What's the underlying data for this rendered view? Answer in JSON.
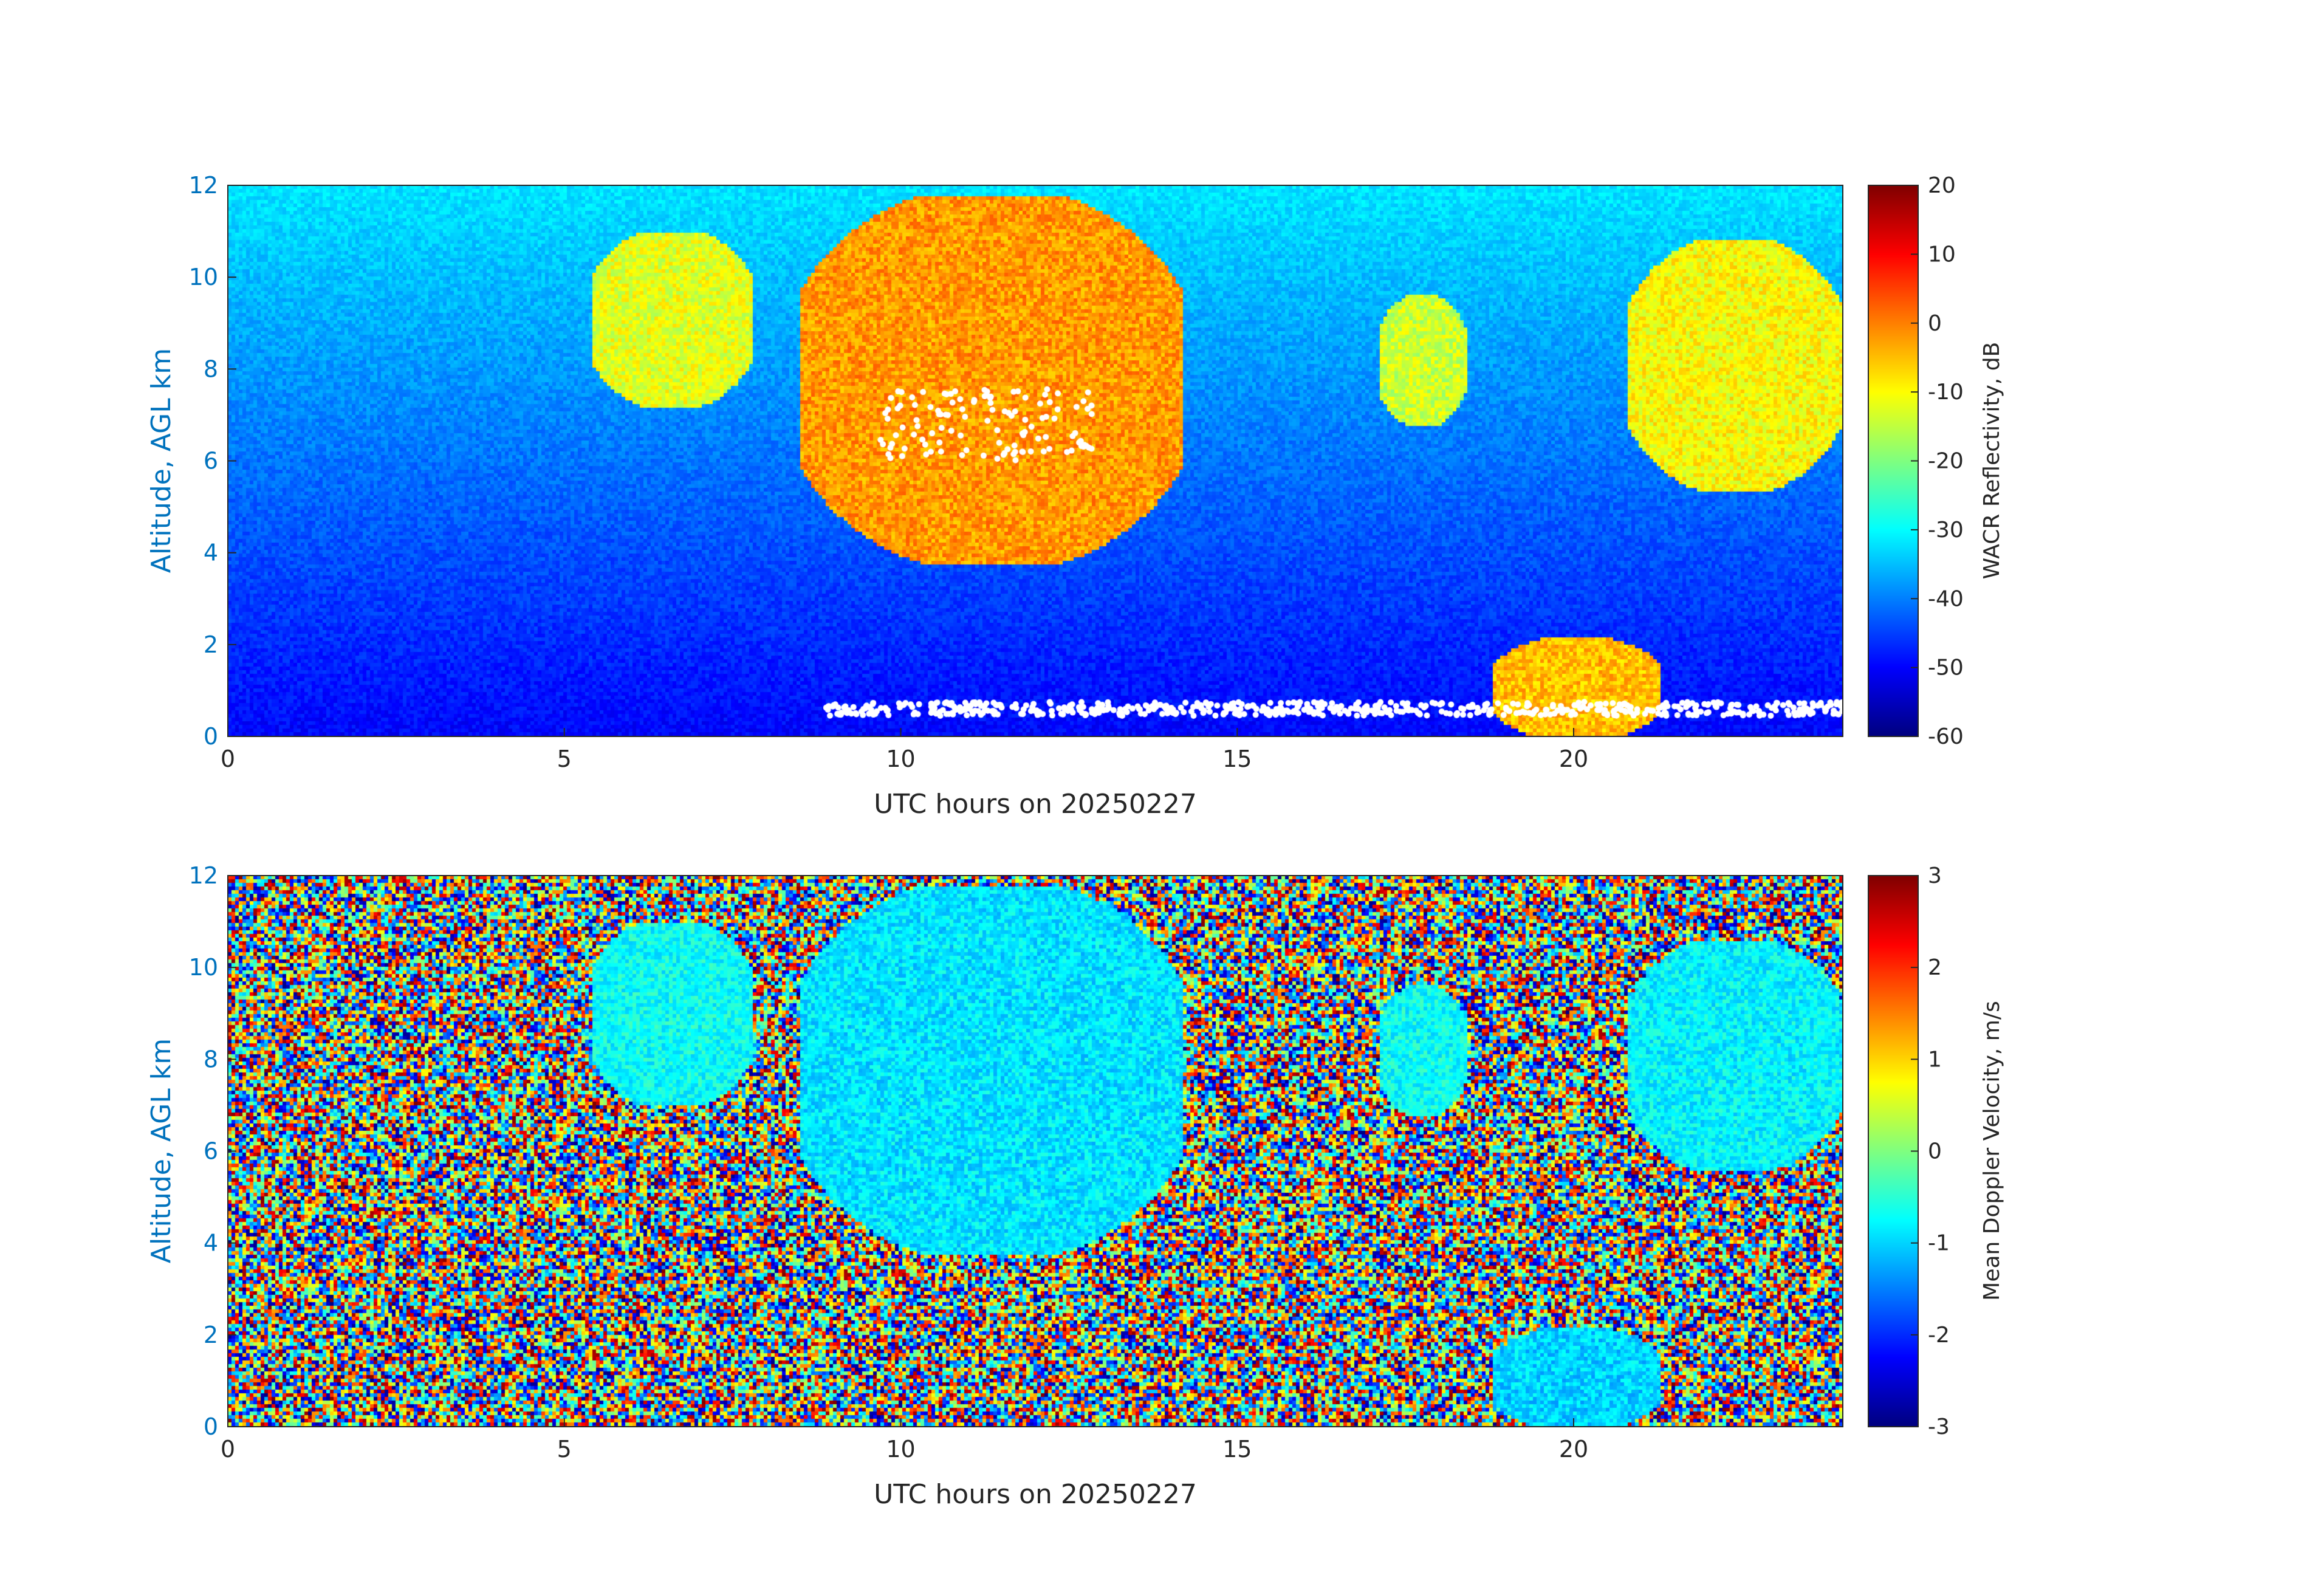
{
  "chart_data": [
    {
      "type": "heatmap",
      "xlabel": "UTC hours on 20250227",
      "ylabel": "Altitude, AGL km",
      "colorbar_label": "WACR Reflectivity, dB",
      "xlim": [
        0,
        24
      ],
      "ylim": [
        0,
        12
      ],
      "clim": [
        -60,
        20
      ],
      "x_ticks": [
        "0",
        "5",
        "10",
        "15",
        "20"
      ],
      "x_tick_values": [
        0,
        5,
        10,
        15,
        20
      ],
      "y_ticks": [
        "0",
        "2",
        "4",
        "6",
        "8",
        "10",
        "12"
      ],
      "y_tick_values": [
        0,
        2,
        4,
        6,
        8,
        10,
        12
      ],
      "colorbar_ticks": [
        "20",
        "10",
        "0",
        "-10",
        "-20",
        "-30",
        "-40",
        "-50",
        "-60"
      ],
      "colorbar_tick_values": [
        20,
        10,
        0,
        -10,
        -20,
        -30,
        -40,
        -50,
        -60
      ],
      "colormap": "jet",
      "grid": false,
      "cloud_features": [
        {
          "x_range": [
            5.4,
            7.8
          ],
          "y_range": [
            7.2,
            11.0
          ],
          "value_dB": -12
        },
        {
          "x_range": [
            8.5,
            14.2
          ],
          "y_range": [
            3.8,
            11.8
          ],
          "value_dB": -2
        },
        {
          "x_range": [
            17.1,
            18.4
          ],
          "y_range": [
            6.8,
            9.6
          ],
          "value_dB": -14
        },
        {
          "x_range": [
            20.8,
            24.0
          ],
          "y_range": [
            5.4,
            10.8
          ],
          "value_dB": -10
        },
        {
          "x_range": [
            18.8,
            21.3
          ],
          "y_range": [
            0.0,
            2.2
          ],
          "value_dB": -5
        }
      ],
      "overlay_markers": "white cloud-base points"
    },
    {
      "type": "heatmap",
      "xlabel": "UTC hours on 20250227",
      "ylabel": "Altitude, AGL km",
      "colorbar_label": "Mean Doppler Velocity, m/s",
      "xlim": [
        0,
        24
      ],
      "ylim": [
        0,
        12
      ],
      "clim": [
        -3,
        3
      ],
      "x_ticks": [
        "0",
        "5",
        "10",
        "15",
        "20"
      ],
      "x_tick_values": [
        0,
        5,
        10,
        15,
        20
      ],
      "y_ticks": [
        "0",
        "2",
        "4",
        "6",
        "8",
        "10",
        "12"
      ],
      "y_tick_values": [
        0,
        2,
        4,
        6,
        8,
        10,
        12
      ],
      "colorbar_ticks": [
        "3",
        "2",
        "1",
        "0",
        "-1",
        "-2",
        "-3"
      ],
      "colorbar_tick_values": [
        3,
        2,
        1,
        0,
        -1,
        -2,
        -3
      ],
      "colormap": "jet",
      "grid": false,
      "cloud_features": [
        {
          "x_range": [
            5.4,
            7.8
          ],
          "y_range": [
            7.0,
            11.0
          ],
          "value_ms": -0.7
        },
        {
          "x_range": [
            8.5,
            14.2
          ],
          "y_range": [
            3.8,
            11.8
          ],
          "value_ms": -0.9
        },
        {
          "x_range": [
            17.1,
            18.4
          ],
          "y_range": [
            6.8,
            9.6
          ],
          "value_ms": -0.7
        },
        {
          "x_range": [
            20.8,
            24.0
          ],
          "y_range": [
            5.6,
            10.6
          ],
          "value_ms": -0.8
        },
        {
          "x_range": [
            18.8,
            21.3
          ],
          "y_range": [
            0.0,
            2.2
          ],
          "value_ms": -1.0
        }
      ],
      "background": "random noise"
    }
  ]
}
